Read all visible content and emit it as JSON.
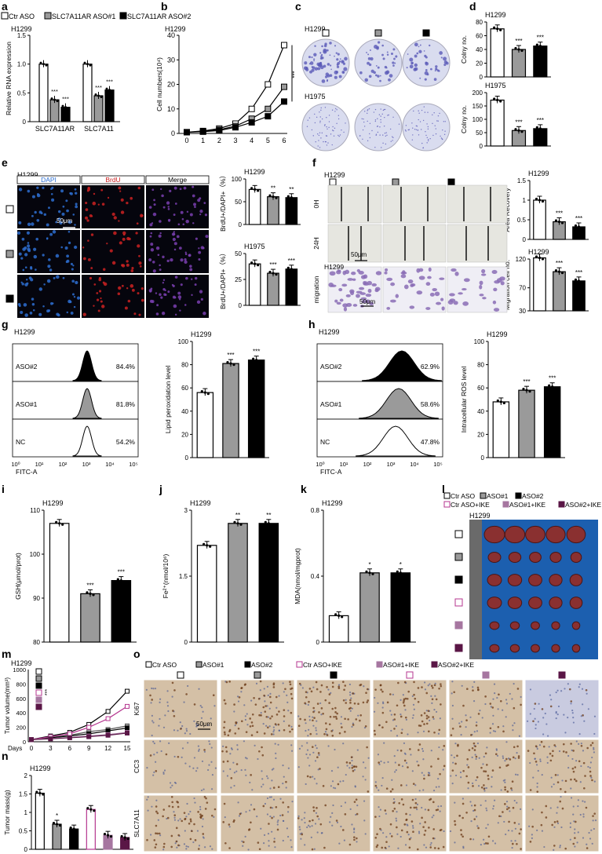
{
  "colors": {
    "ctr": "#ffffff",
    "aso1": "#9a9a9a",
    "aso2": "#000000",
    "ike_ctr": "#b5368f",
    "ike_aso1": "#a676a0",
    "ike_aso2": "#5a1646",
    "crystal": "#5a5ab8",
    "dish_bg": "#d9dcef",
    "dapi": "#2e6fd1",
    "brdu": "#cc2222",
    "merge": "#7a3fb0",
    "ihc_bg": "#d4c0a6",
    "ihc_brown": "#6b3a17",
    "tumor": "#8a3030",
    "tumor_board": "#1c5faf",
    "ihc_blue": "#425392"
  },
  "legend_main": [
    {
      "icon": "ctr",
      "label": "Ctr ASO"
    },
    {
      "icon": "aso1",
      "label": "SLC7A11AR ASO#1"
    },
    {
      "icon": "aso2",
      "label": "SLC7A11AR ASO#2"
    }
  ],
  "panel_letters": {
    "a": "a",
    "b": "b",
    "c": "c",
    "d": "d",
    "e": "e",
    "f": "f",
    "g": "g",
    "h": "h",
    "i": "i",
    "j": "j",
    "k": "k",
    "l": "l",
    "m": "m",
    "n": "n",
    "o": "o"
  },
  "cell_lines": {
    "h1299": "H1299",
    "h1975": "H1975"
  },
  "chart_data": [
    {
      "id": "a",
      "type": "bar",
      "cell": "H1299",
      "ylabel": "Relative RNA expression",
      "ylim": [
        0,
        1.5
      ],
      "yticks": [
        0,
        0.5,
        1.0,
        1.5
      ],
      "categories": [
        "SLC7A11AR",
        "SLC7A11"
      ],
      "series": [
        {
          "name": "Ctr ASO",
          "values": [
            1.0,
            1.0
          ]
        },
        {
          "name": "SLC7A11AR ASO#1",
          "values": [
            0.38,
            0.45
          ]
        },
        {
          "name": "SLC7A11AR ASO#2",
          "values": [
            0.25,
            0.55
          ]
        }
      ],
      "sig": [
        "***",
        "***",
        "***",
        "***"
      ]
    },
    {
      "id": "b",
      "type": "line",
      "cell": "H1299",
      "ylabel": "Cell numbers(10⁴)",
      "xlim": [
        0,
        6
      ],
      "ylim": [
        0,
        40
      ],
      "xticks": [
        0,
        1,
        2,
        3,
        4,
        5,
        6
      ],
      "yticks": [
        0,
        10,
        20,
        30,
        40
      ],
      "series": [
        {
          "name": "Ctr ASO",
          "x": [
            0,
            1,
            2,
            3,
            4,
            5,
            6
          ],
          "values": [
            0.5,
            1,
            2,
            4,
            10,
            20,
            36
          ]
        },
        {
          "name": "SLC7A11AR ASO#1",
          "x": [
            0,
            1,
            2,
            3,
            4,
            5,
            6
          ],
          "values": [
            0.5,
            0.8,
            1.5,
            3,
            6,
            10,
            19
          ]
        },
        {
          "name": "SLC7A11AR ASO#2",
          "x": [
            0,
            1,
            2,
            3,
            4,
            5,
            6
          ],
          "values": [
            0.5,
            0.7,
            1.2,
            2.5,
            4.5,
            7,
            13
          ]
        }
      ],
      "sig": [
        "***",
        "***"
      ]
    },
    {
      "id": "d1",
      "type": "bar",
      "cell": "H1299",
      "ylabel": "Colny no.",
      "ylim": [
        0,
        80
      ],
      "yticks": [
        0,
        20,
        40,
        60,
        80
      ],
      "categories": [
        "Ctr ASO",
        "SLC7A11AR ASO#1",
        "SLC7A11AR ASO#2"
      ],
      "values": [
        70,
        40,
        45
      ],
      "sig": [
        "",
        "***",
        "***"
      ]
    },
    {
      "id": "d2",
      "type": "bar",
      "cell": "H1975",
      "ylabel": "Colny no.",
      "ylim": [
        0,
        200
      ],
      "yticks": [
        0,
        50,
        100,
        150,
        200
      ],
      "categories": [
        "Ctr ASO",
        "SLC7A11AR ASO#1",
        "SLC7A11AR ASO#2"
      ],
      "values": [
        172,
        58,
        65
      ],
      "sig": [
        "",
        "***",
        "***"
      ]
    },
    {
      "id": "e1",
      "type": "bar",
      "cell": "H1299",
      "ylabel": "BrdU+/DAPI+（%）",
      "ylim": [
        0,
        100
      ],
      "yticks": [
        0,
        50,
        100
      ],
      "categories": [
        "Ctr ASO",
        "SLC7A11AR ASO#1",
        "SLC7A11AR ASO#2"
      ],
      "values": [
        77,
        61,
        59
      ],
      "sig": [
        "",
        "**",
        "**"
      ]
    },
    {
      "id": "e2",
      "type": "bar",
      "cell": "H1975",
      "ylabel": "BrdU+/DAPI+（%）",
      "ylim": [
        0,
        50
      ],
      "yticks": [
        0,
        25,
        50
      ],
      "categories": [
        "Ctr ASO",
        "SLC7A11AR ASO#1",
        "SLC7A11AR ASO#2"
      ],
      "values": [
        40,
        31,
        35
      ],
      "sig": [
        "",
        "***",
        "***"
      ]
    },
    {
      "id": "f1",
      "type": "bar",
      "cell": "H1299",
      "ylabel": "Area Recovery",
      "ylim": [
        0,
        1.5
      ],
      "yticks": [
        0,
        0.5,
        1.0,
        1.5
      ],
      "categories": [
        "Ctr ASO",
        "SLC7A11AR ASO#1",
        "SLC7A11AR ASO#2"
      ],
      "values": [
        1.0,
        0.45,
        0.32
      ],
      "sig": [
        "",
        "***",
        "***"
      ]
    },
    {
      "id": "f2",
      "type": "bar",
      "cell": "H1299",
      "ylabel": "Migration cell no.",
      "ylim": [
        30,
        120
      ],
      "yticks": [
        30,
        70,
        120
      ],
      "categories": [
        "Ctr ASO",
        "SLC7A11AR ASO#1",
        "SLC7A11AR ASO#2"
      ],
      "values": [
        122,
        98,
        82
      ],
      "sig": [
        "",
        "***",
        "***"
      ]
    },
    {
      "id": "g2",
      "type": "bar",
      "cell": "H1299",
      "ylabel": "Lipid peroxidation level",
      "ylim": [
        0,
        100
      ],
      "yticks": [
        0,
        20,
        40,
        60,
        80,
        100
      ],
      "categories": [
        "Ctr ASO",
        "SLC7A11AR ASO#1",
        "SLC7A11AR ASO#2"
      ],
      "values": [
        56,
        81,
        84
      ],
      "sig": [
        "",
        "***",
        "***"
      ]
    },
    {
      "id": "h2",
      "type": "bar",
      "cell": "H1299",
      "ylabel": "Intracellular ROS level",
      "ylim": [
        0,
        100
      ],
      "yticks": [
        0,
        20,
        40,
        60,
        80,
        100
      ],
      "categories": [
        "Ctr ASO",
        "SLC7A11AR ASO#1",
        "SLC7A11AR ASO#2"
      ],
      "values": [
        48,
        58,
        61
      ],
      "sig": [
        "",
        "***",
        "***"
      ]
    },
    {
      "id": "i",
      "type": "bar",
      "cell": "H1299",
      "ylabel": "GSH(μmol/prot)",
      "ylim": [
        80,
        110
      ],
      "yticks": [
        80,
        90,
        100,
        110
      ],
      "categories": [
        "Ctr ASO",
        "SLC7A11AR ASO#1",
        "SLC7A11AR ASO#2"
      ],
      "values": [
        107,
        91,
        94
      ],
      "sig": [
        "",
        "***",
        "***"
      ]
    },
    {
      "id": "j",
      "type": "bar",
      "cell": "H1299",
      "ylabel": "Fe²⁺(nmol/10⁶)",
      "ylim": [
        0,
        3.0
      ],
      "yticks": [
        0,
        1.5,
        3.0
      ],
      "categories": [
        "Ctr ASO",
        "SLC7A11AR ASO#1",
        "SLC7A11AR ASO#2"
      ],
      "values": [
        2.2,
        2.7,
        2.7
      ],
      "sig": [
        "",
        "**",
        "**"
      ]
    },
    {
      "id": "k",
      "type": "bar",
      "cell": "H1299",
      "ylabel": "MDA(nmol/mgprot)",
      "ylim": [
        0,
        0.8
      ],
      "yticks": [
        0,
        0.4,
        0.8
      ],
      "categories": [
        "Ctr ASO",
        "SLC7A11AR ASO#1",
        "SLC7A11AR ASO#2"
      ],
      "values": [
        0.16,
        0.42,
        0.42
      ],
      "sig": [
        "",
        "*",
        "*"
      ]
    },
    {
      "id": "m",
      "type": "line",
      "cell": "H1299",
      "ylabel": "Tumor volume(mm³)",
      "xlabel": "Days",
      "xlim": [
        0,
        15
      ],
      "ylim": [
        0,
        1000
      ],
      "xticks": [
        0,
        3,
        6,
        9,
        12,
        15
      ],
      "yticks": [
        0,
        200,
        400,
        600,
        800,
        1000
      ],
      "series": [
        {
          "name": "Ctr ASO",
          "values": [
            30,
            80,
            130,
            240,
            420,
            700
          ]
        },
        {
          "name": "ASO#1",
          "values": [
            30,
            60,
            90,
            140,
            170,
            220
          ]
        },
        {
          "name": "ASO#2",
          "values": [
            30,
            55,
            80,
            110,
            150,
            190
          ]
        },
        {
          "name": "Ctr ASO+IKE",
          "values": [
            30,
            70,
            110,
            200,
            320,
            490
          ]
        },
        {
          "name": "ASO#1+IKE",
          "values": [
            30,
            45,
            60,
            80,
            100,
            130
          ]
        },
        {
          "name": "ASO#2+IKE",
          "values": [
            30,
            40,
            55,
            70,
            90,
            120
          ]
        }
      ],
      "x": [
        0,
        3,
        6,
        9,
        12,
        15
      ]
    },
    {
      "id": "n",
      "type": "bar",
      "cell": "H1299",
      "ylabel": "Tumor mass(g)",
      "ylim": [
        0,
        2.0
      ],
      "yticks": [
        0,
        0.5,
        1.0,
        1.5,
        2.0
      ],
      "categories": [
        "Ctr ASO",
        "ASO#1",
        "ASO#2",
        "Ctr ASO+IKE",
        "ASO#1+IKE",
        "ASO#2+IKE"
      ],
      "values": [
        1.52,
        0.68,
        0.55,
        1.08,
        0.38,
        0.32
      ],
      "sig": [
        "",
        "*",
        "",
        "",
        "",
        ""
      ]
    }
  ],
  "flow_g": {
    "labels": [
      "ASO#2",
      "ASO#1",
      "NC"
    ],
    "pcts": [
      "84.4%",
      "81.8%",
      "54.2%"
    ],
    "xlabel": "FITC-A",
    "xticks": [
      "10⁰",
      "10¹",
      "10²",
      "10³",
      "10⁴",
      "10⁵"
    ]
  },
  "flow_h": {
    "labels": [
      "ASO#2",
      "ASO#1",
      "NC"
    ],
    "pcts": [
      "62.9%",
      "58.6%",
      "47.8%"
    ],
    "xlabel": "FITC-A",
    "xticks": [
      "10⁰",
      "10¹",
      "10²",
      "10³",
      "10⁴",
      "10⁵"
    ]
  },
  "panel_e_heads": [
    "DAPI",
    "BrdU",
    "Merge"
  ],
  "scalebar": "50μm",
  "panel_f_rows": [
    "0H",
    "24H",
    "migration"
  ],
  "legend_l": {
    "row1": [
      "Ctr ASO",
      "ASO#1",
      "ASO#2"
    ],
    "row2": [
      "Ctr ASO+IKE",
      "ASO#1+IKE",
      "ASO#2+IKE"
    ]
  },
  "legend_o": [
    "Ctr ASO",
    "ASO#1",
    "ASO#2",
    "Ctr ASO+IKE",
    "ASO#1+IKE",
    "ASO#2+IKE"
  ],
  "ihc_rows": [
    "Ki67",
    "CC3",
    "SLC7A11"
  ],
  "sig_b": "***",
  "sig_m": "***"
}
